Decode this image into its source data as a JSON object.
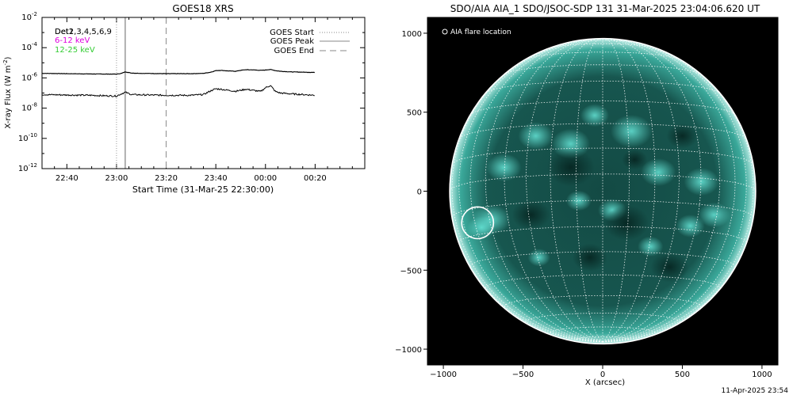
{
  "chart_data": [
    {
      "type": "line",
      "title": "GOES18 XRS",
      "xlabel": "Start Time (31-Mar-25 22:30:00)",
      "ylabel": "X-ray Flux (W m",
      "ylabel_sup": "-2",
      "ylabel_end": ")",
      "ylog": true,
      "ylim_exp": [
        -12,
        -2
      ],
      "yticks_exp": [
        -12,
        -10,
        -8,
        -6,
        -4,
        -2
      ],
      "xlim_min": [
        -20,
        110
      ],
      "xticks": [
        {
          "min": -10,
          "label": "22:40"
        },
        {
          "min": 10,
          "label": "23:00"
        },
        {
          "min": 30,
          "label": "23:20"
        },
        {
          "min": 50,
          "label": "23:40"
        },
        {
          "min": 70,
          "label": "00:00"
        },
        {
          "min": 90,
          "label": "00:20"
        }
      ],
      "legend_channels": [
        {
          "label": "Det1,3,4,5,6,9",
          "color": "#000000",
          "overprint": "Det2"
        },
        {
          "label": "6-12 keV",
          "color": "#e000e0"
        },
        {
          "label": "12-25 keV",
          "color": "#33cc33"
        }
      ],
      "legend_lines": [
        {
          "label": "GOES Start",
          "style": "dotted"
        },
        {
          "label": "GOES Peak",
          "style": "solid"
        },
        {
          "label": "GOES End",
          "style": "dashed"
        }
      ],
      "event_lines_min": {
        "start": 10,
        "peak": 13.5,
        "end": 30
      },
      "series": [
        {
          "channel": "long",
          "x_min": [
            -20,
            -10,
            0,
            10,
            12,
            13.5,
            16,
            20,
            30,
            40,
            45,
            48,
            50,
            52,
            55,
            58,
            60,
            62,
            65,
            68,
            70,
            72,
            74,
            76,
            80,
            85,
            90
          ],
          "y_log10": [
            -5.7,
            -5.72,
            -5.74,
            -5.75,
            -5.7,
            -5.6,
            -5.68,
            -5.7,
            -5.72,
            -5.72,
            -5.7,
            -5.62,
            -5.52,
            -5.5,
            -5.54,
            -5.56,
            -5.5,
            -5.46,
            -5.47,
            -5.5,
            -5.48,
            -5.44,
            -5.52,
            -5.56,
            -5.6,
            -5.62,
            -5.64
          ]
        },
        {
          "channel": "short",
          "x_min": [
            -20,
            -10,
            0,
            5,
            10,
            12,
            13.5,
            16,
            20,
            30,
            40,
            45,
            48,
            50,
            52,
            55,
            58,
            60,
            62,
            65,
            68,
            70,
            72,
            74,
            76,
            80,
            85,
            90
          ],
          "y_log10": [
            -7.1,
            -7.13,
            -7.15,
            -7.18,
            -7.2,
            -7.05,
            -6.95,
            -7.1,
            -7.12,
            -7.15,
            -7.15,
            -7.1,
            -6.85,
            -6.72,
            -6.75,
            -6.82,
            -6.88,
            -6.82,
            -6.75,
            -6.82,
            -6.9,
            -6.65,
            -6.5,
            -6.9,
            -7.0,
            -7.05,
            -7.1,
            -7.15
          ]
        }
      ]
    },
    {
      "type": "image",
      "title": "SDO/AIA AIA_1 SDO/JSOC-SDP 131 31-Mar-2025 23:04:06.620 UT",
      "xlabel": "X (arcsec)",
      "xlim": [
        -1100,
        1100
      ],
      "ylim": [
        -1100,
        1100
      ],
      "xticks": [
        -1000,
        -500,
        0,
        500,
        1000
      ],
      "yticks": [
        -1000,
        -500,
        0,
        500,
        1000
      ],
      "legend": "AIA flare location",
      "solar_radius_arcsec": 960,
      "grid_step_deg": 10,
      "b0_deg": -6.5,
      "flare_location_arcsec": [
        -785,
        -200
      ],
      "disk_color": "#15504a",
      "bright_color": "#66e6d8"
    }
  ],
  "footer_timestamp": "11-Apr-2025 23:54"
}
